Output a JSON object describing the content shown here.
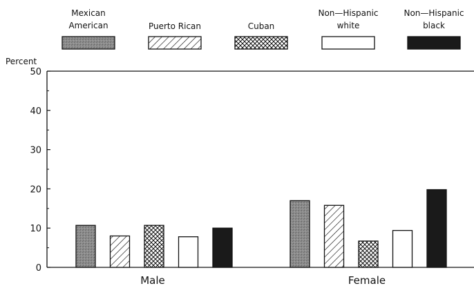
{
  "chart_data": {
    "type": "bar",
    "title": "",
    "ylabel": "Percent",
    "xlabel": "",
    "ylim": [
      0,
      50
    ],
    "yticks": [
      0,
      10,
      20,
      30,
      40,
      50
    ],
    "grid": false,
    "legend_position": "top",
    "categories": [
      "Male",
      "Female"
    ],
    "series": [
      {
        "name": "Mexican American",
        "pattern": "stipple",
        "values": [
          10.7,
          17.0
        ]
      },
      {
        "name": "Puerto Rican",
        "pattern": "diagonal-hatch",
        "values": [
          8.0,
          15.8
        ]
      },
      {
        "name": "Cuban",
        "pattern": "crosshatch",
        "values": [
          10.7,
          6.7
        ]
      },
      {
        "name": "Non-Hispanic white",
        "pattern": "open",
        "values": [
          7.8,
          9.4
        ]
      },
      {
        "name": "Non-Hispanic black",
        "pattern": "solid",
        "values": [
          10.0,
          19.8
        ]
      }
    ]
  },
  "legend_labels": [
    [
      "Mexican",
      "American"
    ],
    [
      "Puerto Rican"
    ],
    [
      "Cuban"
    ],
    [
      "Non—Hispanic",
      "white"
    ],
    [
      "Non—Hispanic",
      "black"
    ]
  ],
  "colors": {
    "ink": "#111111",
    "stipple_fill": "#8c8c8c",
    "solid_fill": "#1a1a1a",
    "background": "#ffffff"
  }
}
